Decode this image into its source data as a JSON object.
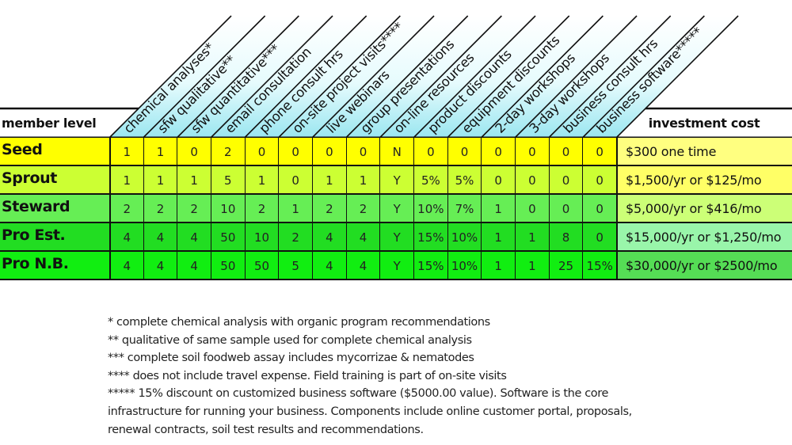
{
  "header": {
    "member_level": "member level",
    "investment_cost": "investment cost",
    "header_fill": "#a8ecf4",
    "columns": [
      "chemical analyses*",
      "sfw qualitative**",
      "sfw quantitative***",
      "email consultation",
      "phone consult hrs",
      "on-site project visits****",
      "live webinars",
      "group presentations",
      "on-line resources",
      "product discounts",
      "equipment discounts",
      "2-day workshops",
      "3-day workshops",
      "business consult hrs",
      "business software*****"
    ]
  },
  "rows": [
    {
      "name": "Seed",
      "row_color": "#ffff00",
      "cost_color": "#ffff80",
      "values": [
        "1",
        "1",
        "0",
        "2",
        "0",
        "0",
        "0",
        "0",
        "N",
        "0",
        "0",
        "0",
        "0",
        "0",
        "0"
      ],
      "cost": "$300 one time"
    },
    {
      "name": "Sprout",
      "row_color": "#ccff33",
      "cost_color": "#ffff66",
      "values": [
        "1",
        "1",
        "1",
        "5",
        "1",
        "0",
        "1",
        "1",
        "Y",
        "5%",
        "5%",
        "0",
        "0",
        "0",
        "0"
      ],
      "cost": "$1,500/yr or $125/mo"
    },
    {
      "name": "Steward",
      "row_color": "#66ee55",
      "cost_color": "#ccff77",
      "values": [
        "2",
        "2",
        "2",
        "10",
        "2",
        "1",
        "2",
        "2",
        "Y",
        "10%",
        "7%",
        "1",
        "0",
        "0",
        "0"
      ],
      "cost": "$5,000/yr or $416/mo"
    },
    {
      "name": "Pro Est.",
      "row_color": "#22dd22",
      "cost_color": "#99f5aa",
      "values": [
        "4",
        "4",
        "4",
        "50",
        "10",
        "2",
        "4",
        "4",
        "Y",
        "15%",
        "10%",
        "1",
        "1",
        "8",
        "0"
      ],
      "cost": "$15,000/yr or $1,250/mo"
    },
    {
      "name": "Pro N.B.",
      "row_color": "#11ee11",
      "cost_color": "#55dd55",
      "values": [
        "4",
        "4",
        "4",
        "50",
        "50",
        "5",
        "4",
        "4",
        "Y",
        "15%",
        "10%",
        "1",
        "1",
        "25",
        "15%"
      ],
      "cost": "$30,000/yr or $2500/mo"
    }
  ],
  "notes": [
    "*    complete chemical analysis with organic program recommendations",
    "**   qualitative of same sample used for complete chemical analysis",
    "*** complete soil foodweb assay includes mycorrizae & nematodes",
    "**** does not include travel expense. Field training is part of on-site visits",
    "***** 15% discount on customized business software ($5000.00 value). Software is the core",
    "infrastructure for running your business. Components include online customer portal, proposals,",
    "renewal contracts, soil test results and recommendations."
  ]
}
